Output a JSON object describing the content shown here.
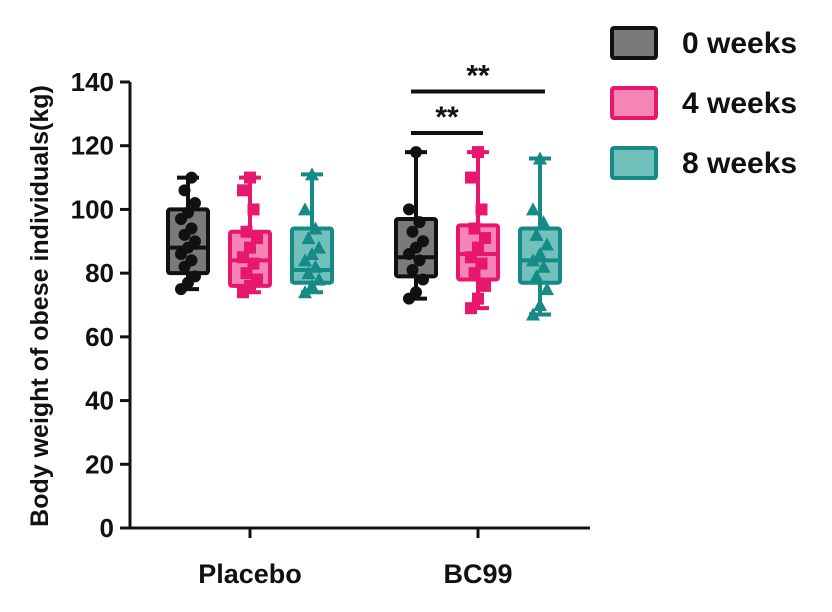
{
  "chart_data": {
    "type": "box",
    "title": "",
    "xlabel": "",
    "ylabel": "Body weight of obese individuals(kg)",
    "ylim": [
      0,
      140
    ],
    "yticks": [
      0,
      20,
      40,
      60,
      80,
      100,
      120,
      140
    ],
    "categories": [
      "Placebo",
      "BC99"
    ],
    "legend_position": "top-right",
    "grid": false,
    "series": [
      {
        "name": "0 weeks",
        "color": "#7a7a7a",
        "edge": "#111111",
        "marker": "circle",
        "boxes": [
          {
            "min": 75,
            "q1": 80,
            "median": 88,
            "q3": 100,
            "max": 110,
            "points": [
              75,
              77,
              79,
              82,
              84,
              86,
              88,
              90,
              92,
              94,
              97,
              99,
              102,
              106,
              110
            ]
          },
          {
            "min": 72,
            "q1": 79,
            "median": 85,
            "q3": 97,
            "max": 118,
            "points": [
              72,
              74,
              78,
              81,
              84,
              86,
              88,
              90,
              93,
              96,
              100,
              118
            ]
          }
        ]
      },
      {
        "name": "4 weeks",
        "color": "#f585b4",
        "edge": "#e8176e",
        "marker": "square",
        "boxes": [
          {
            "min": 74,
            "q1": 76,
            "median": 84,
            "q3": 93,
            "max": 110,
            "points": [
              74,
              76,
              78,
              80,
              83,
              85,
              88,
              91,
              93,
              100,
              106,
              110
            ]
          },
          {
            "min": 69,
            "q1": 78,
            "median": 86,
            "q3": 95,
            "max": 118,
            "points": [
              69,
              72,
              76,
              80,
              83,
              85,
              88,
              91,
              94,
              100,
              110,
              118
            ]
          }
        ]
      },
      {
        "name": "8 weeks",
        "color": "#72c0bc",
        "edge": "#168a86",
        "marker": "triangle",
        "boxes": [
          {
            "min": 74,
            "q1": 77,
            "median": 81,
            "q3": 94,
            "max": 111,
            "points": [
              74,
              76,
              78,
              80,
              82,
              84,
              86,
              88,
              91,
              94,
              100,
              111
            ]
          },
          {
            "min": 67,
            "q1": 77,
            "median": 84,
            "q3": 94,
            "max": 116,
            "points": [
              67,
              70,
              75,
              79,
              82,
              84,
              86,
              89,
              92,
              96,
              100,
              116
            ]
          }
        ]
      }
    ],
    "annotations": [
      {
        "text": "**",
        "category": "BC99",
        "from_series": 0,
        "to_series": 1,
        "y": 124
      },
      {
        "text": "**",
        "category": "BC99",
        "from_series": 0,
        "to_series": 2,
        "y": 137
      }
    ]
  }
}
